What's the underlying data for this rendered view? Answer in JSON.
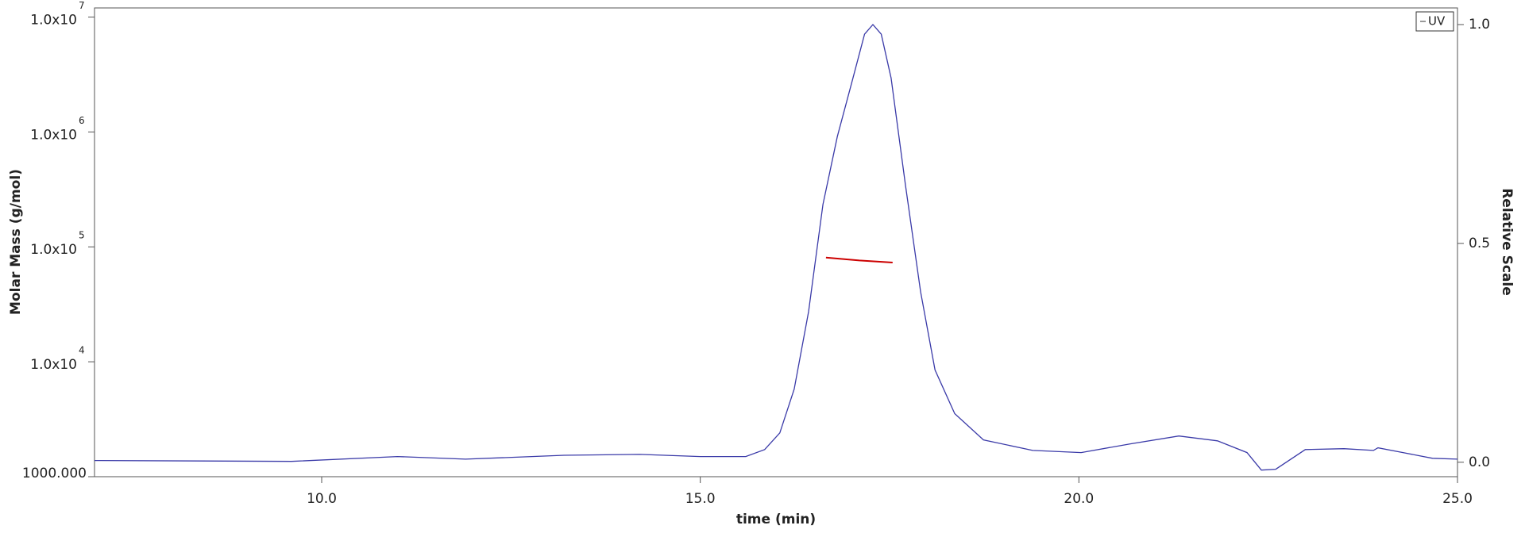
{
  "chart_data": {
    "type": "line",
    "x_label": "time (min)",
    "y_label": "Molar Mass (g/mol)",
    "y2_label": "Relative Scale",
    "ylog": true,
    "xlim": [
      7.0,
      25.0
    ],
    "ylim": [
      1000,
      12000000
    ],
    "y2lim": [
      -0.033,
      1.038
    ],
    "xticks": [
      {
        "value": 10,
        "label": "10.0"
      },
      {
        "value": 15,
        "label": "15.0"
      },
      {
        "value": 20,
        "label": "20.0"
      },
      {
        "value": 25,
        "label": "25.0"
      }
    ],
    "yticks": [
      {
        "value": 1000,
        "label": "1000.000"
      },
      {
        "value": 10000,
        "label": "1.0x10",
        "exponent": "4"
      },
      {
        "value": 100000,
        "label": "1.0x10",
        "exponent": "5"
      },
      {
        "value": 1000000,
        "label": "1.0x10",
        "exponent": "6"
      },
      {
        "value": 10000000,
        "label": "1.0x10",
        "exponent": "7"
      }
    ],
    "y2ticks": [
      {
        "value": 0,
        "label": "0.0"
      },
      {
        "value": 0.5,
        "label": "0.5"
      },
      {
        "value": 1,
        "label": "1.0"
      }
    ],
    "legend": "upper right",
    "series": [
      {
        "name": "UV",
        "color": "#3a3aa8",
        "axis": "y2",
        "x": [
          7.0,
          9.6,
          11.0,
          11.9,
          13.2,
          14.2,
          15.0,
          15.6,
          15.85,
          16.05,
          16.24,
          16.43,
          16.62,
          16.81,
          17.0,
          17.17,
          17.28,
          17.39,
          17.52,
          17.71,
          17.91,
          18.1,
          18.36,
          18.74,
          19.39,
          20.03,
          20.68,
          21.32,
          21.83,
          22.22,
          22.41,
          22.6,
          22.99,
          23.5,
          23.89,
          23.95,
          24.28,
          24.67,
          25.0
        ],
        "values": [
          0.004,
          0.002,
          0.013,
          0.007,
          0.016,
          0.018,
          0.013,
          0.013,
          0.029,
          0.067,
          0.167,
          0.344,
          0.589,
          0.744,
          0.867,
          0.978,
          1.0,
          0.978,
          0.878,
          0.633,
          0.389,
          0.211,
          0.111,
          0.051,
          0.027,
          0.022,
          0.042,
          0.06,
          0.049,
          0.022,
          -0.018,
          -0.016,
          0.029,
          0.031,
          0.027,
          0.033,
          0.022,
          0.009,
          0.007
        ]
      },
      {
        "color": "#cc0000",
        "x": [
          16.66,
          17.1,
          17.54
        ],
        "values": [
          80700,
          76100,
          73100
        ]
      }
    ]
  }
}
